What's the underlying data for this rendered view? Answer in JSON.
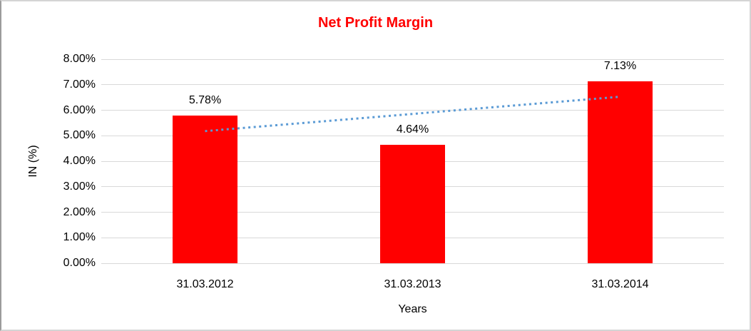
{
  "chart_data": {
    "type": "bar",
    "title": "Net Profit Margin",
    "title_color": "#FF0000",
    "xlabel": "Years",
    "ylabel": "IN (%)",
    "categories": [
      "31.03.2012",
      "31.03.2013",
      "31.03.2014"
    ],
    "values": [
      5.78,
      4.64,
      7.13
    ],
    "data_labels": [
      "5.78%",
      "4.64%",
      "7.13%"
    ],
    "ylim": [
      0,
      8
    ],
    "ytick_step": 1,
    "ytick_labels": [
      "0.00%",
      "1.00%",
      "2.00%",
      "3.00%",
      "4.00%",
      "5.00%",
      "6.00%",
      "7.00%",
      "8.00%"
    ],
    "grid": true,
    "legend": "none",
    "bar_color": "#FF0000",
    "gridline_color": "#D9D9D9",
    "trendline": {
      "type": "linear",
      "style": "dotted",
      "color": "#5B9BD5",
      "start_value": 5.18,
      "end_value": 6.53
    }
  }
}
